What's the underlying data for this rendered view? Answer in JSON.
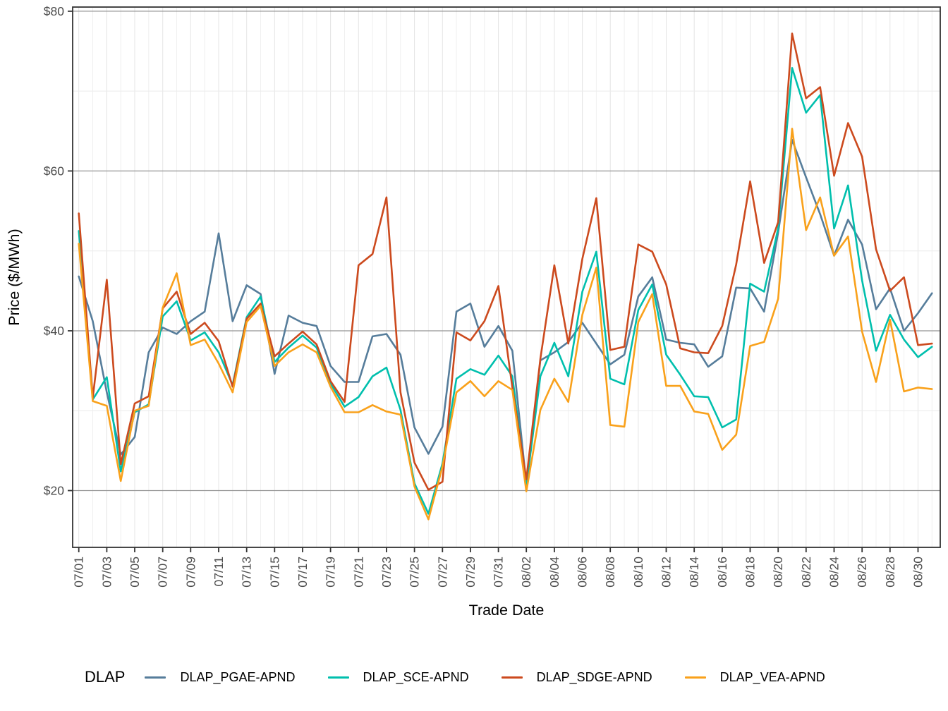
{
  "chart_data": {
    "type": "line",
    "title": "",
    "xlabel": "Trade Date",
    "ylabel": "Price ($/MWh)",
    "legend_title": "DLAP",
    "legend_position": "bottom",
    "grid": "on",
    "ylim": [
      13,
      80.6
    ],
    "yticks": [
      20,
      40,
      60,
      80
    ],
    "y_tick_labels": [
      "$20",
      "$40",
      "$60",
      "$80"
    ],
    "y_minor_ticks": [
      30,
      50,
      70
    ],
    "x_tick_every": 2,
    "x": [
      "07/01",
      "07/02",
      "07/03",
      "07/04",
      "07/05",
      "07/06",
      "07/07",
      "07/08",
      "07/09",
      "07/10",
      "07/11",
      "07/12",
      "07/13",
      "07/14",
      "07/15",
      "07/16",
      "07/17",
      "07/18",
      "07/19",
      "07/20",
      "07/21",
      "07/22",
      "07/23",
      "07/24",
      "07/25",
      "07/26",
      "07/27",
      "07/28",
      "07/29",
      "07/30",
      "07/31",
      "08/01",
      "08/02",
      "08/03",
      "08/04",
      "08/05",
      "08/06",
      "08/07",
      "08/08",
      "08/09",
      "08/10",
      "08/11",
      "08/12",
      "08/13",
      "08/14",
      "08/15",
      "08/16",
      "08/17",
      "08/18",
      "08/19",
      "08/20",
      "08/21",
      "08/22",
      "08/23",
      "08/24",
      "08/25",
      "08/26",
      "08/27",
      "08/28",
      "08/29",
      "08/30",
      "08/31"
    ],
    "series": [
      {
        "name": "DLAP_PGAE-APND",
        "color": "#567D9B",
        "values": [
          46.8,
          41.2,
          32.3,
          24.5,
          26.7,
          37.3,
          40.4,
          39.6,
          41.2,
          42.4,
          52.2,
          41.2,
          45.7,
          44.6,
          34.6,
          41.9,
          41.0,
          40.6,
          35.6,
          33.6,
          33.6,
          39.3,
          39.6,
          37.0,
          27.9,
          24.6,
          28.0,
          42.4,
          43.4,
          38.0,
          40.6,
          37.5,
          20.8,
          36.3,
          37.3,
          38.6,
          41.0,
          38.4,
          35.8,
          37.0,
          44.3,
          46.7,
          38.9,
          38.5,
          38.3,
          35.5,
          36.8,
          45.4,
          45.3,
          42.4,
          52.3,
          63.9,
          59.2,
          54.6,
          49.4,
          53.9,
          50.8,
          42.7,
          45.3,
          40.0,
          42.2,
          44.7
        ]
      },
      {
        "name": "DLAP_SCE-APND",
        "color": "#00BFAD",
        "values": [
          52.5,
          31.4,
          34.2,
          22.4,
          29.8,
          30.8,
          41.8,
          43.7,
          38.8,
          39.8,
          37.3,
          33.2,
          41.7,
          44.3,
          36.1,
          37.9,
          39.4,
          37.9,
          33.4,
          30.5,
          31.7,
          34.3,
          35.4,
          30.1,
          20.9,
          17.1,
          23.4,
          34.0,
          35.2,
          34.5,
          36.9,
          34.3,
          20.6,
          34.3,
          38.5,
          34.3,
          44.9,
          49.9,
          34.0,
          33.3,
          42.6,
          45.8,
          37.0,
          34.5,
          31.8,
          31.7,
          27.9,
          28.9,
          45.9,
          44.9,
          52.8,
          72.9,
          67.3,
          69.5,
          52.8,
          58.2,
          46.3,
          37.5,
          42.0,
          38.9,
          36.7,
          38.0
        ]
      },
      {
        "name": "DLAP_SDGE-APND",
        "color": "#CC4A1E",
        "values": [
          54.7,
          31.6,
          46.4,
          23.3,
          30.9,
          31.8,
          42.8,
          44.9,
          39.6,
          41.0,
          38.7,
          33.0,
          41.5,
          43.4,
          36.8,
          38.4,
          39.9,
          38.3,
          33.7,
          31.1,
          48.2,
          49.6,
          56.7,
          32.3,
          23.5,
          20.1,
          21.1,
          39.8,
          38.8,
          41.2,
          45.6,
          32.9,
          21.4,
          36.5,
          48.2,
          38.4,
          49.0,
          56.6,
          37.6,
          38.0,
          50.8,
          49.9,
          45.8,
          37.8,
          37.3,
          37.2,
          40.6,
          48.3,
          58.7,
          48.5,
          53.6,
          77.2,
          69.1,
          70.5,
          59.4,
          66.0,
          61.8,
          50.2,
          45.0,
          46.7,
          38.2,
          38.4
        ]
      },
      {
        "name": "DLAP_VEA-APND",
        "color": "#F9A11B",
        "values": [
          50.9,
          31.2,
          30.6,
          21.2,
          30.0,
          30.6,
          42.9,
          47.2,
          38.2,
          38.9,
          35.9,
          32.3,
          41.1,
          43.1,
          35.6,
          37.3,
          38.3,
          37.3,
          33.0,
          29.8,
          29.8,
          30.7,
          29.9,
          29.5,
          20.5,
          16.4,
          23.0,
          32.3,
          33.7,
          31.8,
          33.7,
          32.6,
          19.9,
          30.1,
          34.0,
          31.1,
          42.0,
          47.9,
          28.2,
          28.0,
          41.1,
          44.6,
          33.1,
          33.1,
          29.9,
          29.6,
          25.1,
          27.0,
          38.1,
          38.6,
          44.0,
          65.3,
          52.6,
          56.7,
          49.4,
          51.8,
          39.9,
          33.6,
          41.4,
          32.4,
          32.9,
          32.7
        ]
      }
    ]
  }
}
